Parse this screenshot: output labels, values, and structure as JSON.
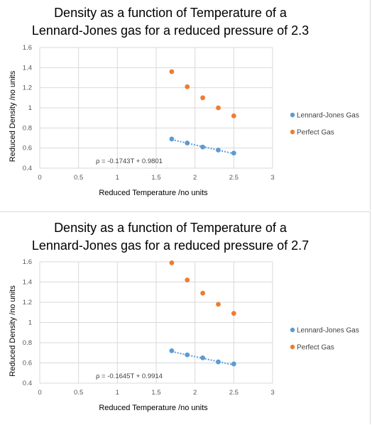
{
  "chart_data": [
    {
      "type": "scatter",
      "title": "Density as a function of Temperature of a Lennard-Jones gas for a reduced pressure of 2.3",
      "xlabel": "Reduced Temperature /no units",
      "ylabel": "Reduced Density /no units",
      "xlim": [
        0,
        3
      ],
      "ylim": [
        0.4,
        1.6
      ],
      "xticks": [
        "0",
        "0.5",
        "1",
        "1.5",
        "2",
        "2.5",
        "3"
      ],
      "yticks": [
        "0.4",
        "0.6",
        "0.8",
        "1",
        "1.2",
        "1.4",
        "1.6"
      ],
      "xtick_values": [
        0,
        0.5,
        1,
        1.5,
        2,
        2.5,
        3
      ],
      "ytick_values": [
        0.4,
        0.6,
        0.8,
        1.0,
        1.2,
        1.4,
        1.6
      ],
      "grid": true,
      "legend_position": "right",
      "series": [
        {
          "name": "Lennard-Jones Gas",
          "color": "#5b9bd5",
          "x": [
            1.7,
            1.9,
            2.1,
            2.3,
            2.5
          ],
          "y": [
            0.69,
            0.65,
            0.61,
            0.58,
            0.55
          ],
          "trendline": {
            "color": "#5b9bd5",
            "slope": -0.1743,
            "intercept": 0.9801,
            "label": "ρ = -0.1743T + 0.9801",
            "x_range": [
              1.7,
              2.5
            ]
          }
        },
        {
          "name": "Perfect Gas",
          "color": "#ed7d31",
          "x": [
            1.7,
            1.9,
            2.1,
            2.3,
            2.5
          ],
          "y": [
            1.36,
            1.21,
            1.1,
            1.0,
            0.92
          ]
        }
      ]
    },
    {
      "type": "scatter",
      "title": "Density as a function of Temperature of a Lennard-Jones gas for a reduced pressure of 2.7",
      "xlabel": "Reduced Temperature /no units",
      "ylabel": "Reduced Density /no units",
      "xlim": [
        0,
        3
      ],
      "ylim": [
        0.4,
        1.6
      ],
      "xticks": [
        "0",
        "0.5",
        "1",
        "1.5",
        "2",
        "2.5",
        "3"
      ],
      "yticks": [
        "0.4",
        "0.6",
        "0.8",
        "1",
        "1.2",
        "1.4",
        "1.6"
      ],
      "xtick_values": [
        0,
        0.5,
        1,
        1.5,
        2,
        2.5,
        3
      ],
      "ytick_values": [
        0.4,
        0.6,
        0.8,
        1.0,
        1.2,
        1.4,
        1.6
      ],
      "grid": true,
      "legend_position": "right",
      "series": [
        {
          "name": "Lennard-Jones Gas",
          "color": "#5b9bd5",
          "x": [
            1.7,
            1.9,
            2.1,
            2.3,
            2.5
          ],
          "y": [
            0.72,
            0.68,
            0.65,
            0.61,
            0.59
          ],
          "trendline": {
            "color": "#5b9bd5",
            "slope": -0.1645,
            "intercept": 0.9914,
            "label": "ρ = -0.1645T + 0.9914",
            "x_range": [
              1.7,
              2.5
            ]
          }
        },
        {
          "name": "Perfect Gas",
          "color": "#ed7d31",
          "x": [
            1.7,
            1.9,
            2.1,
            2.3,
            2.5
          ],
          "y": [
            1.59,
            1.42,
            1.29,
            1.18,
            1.09
          ]
        }
      ]
    }
  ]
}
